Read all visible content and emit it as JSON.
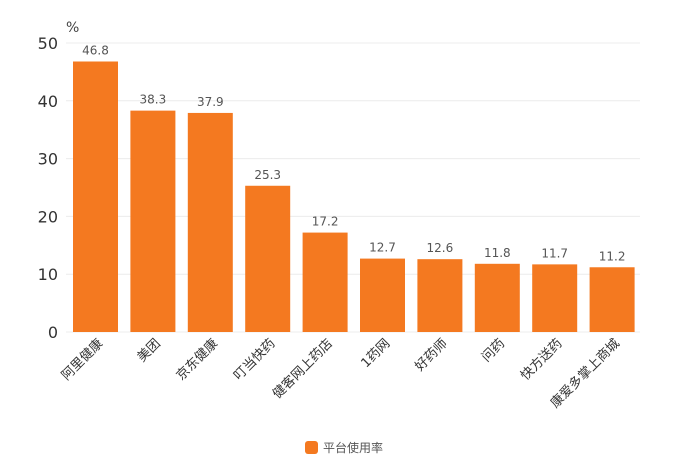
{
  "chart_data": {
    "type": "bar",
    "title": "",
    "xlabel": "",
    "ylabel": "%",
    "ylim": [
      0,
      50
    ],
    "yticks": [
      0,
      10,
      20,
      30,
      40,
      50
    ],
    "grid": true,
    "legend_position": "bottom",
    "categories": [
      "阿里健康",
      "美团",
      "京东健康",
      "叮当快药",
      "健客网上药店",
      "1药网",
      "好药师",
      "问药",
      "快方送药",
      "康爱多掌上商城"
    ],
    "series": [
      {
        "name": "平台使用率",
        "color": "#f47920",
        "values": [
          46.8,
          38.3,
          37.9,
          25.3,
          17.2,
          12.7,
          12.6,
          11.8,
          11.7,
          11.2
        ]
      }
    ],
    "value_labels": [
      "46.8",
      "38.3",
      "37.9",
      "25.3",
      "17.2",
      "12.7",
      "12.6",
      "11.8",
      "11.7",
      "11.2"
    ]
  },
  "axis": {
    "unit_label": "%"
  },
  "legend": {
    "label": "平台使用率",
    "color": "#f47920"
  }
}
